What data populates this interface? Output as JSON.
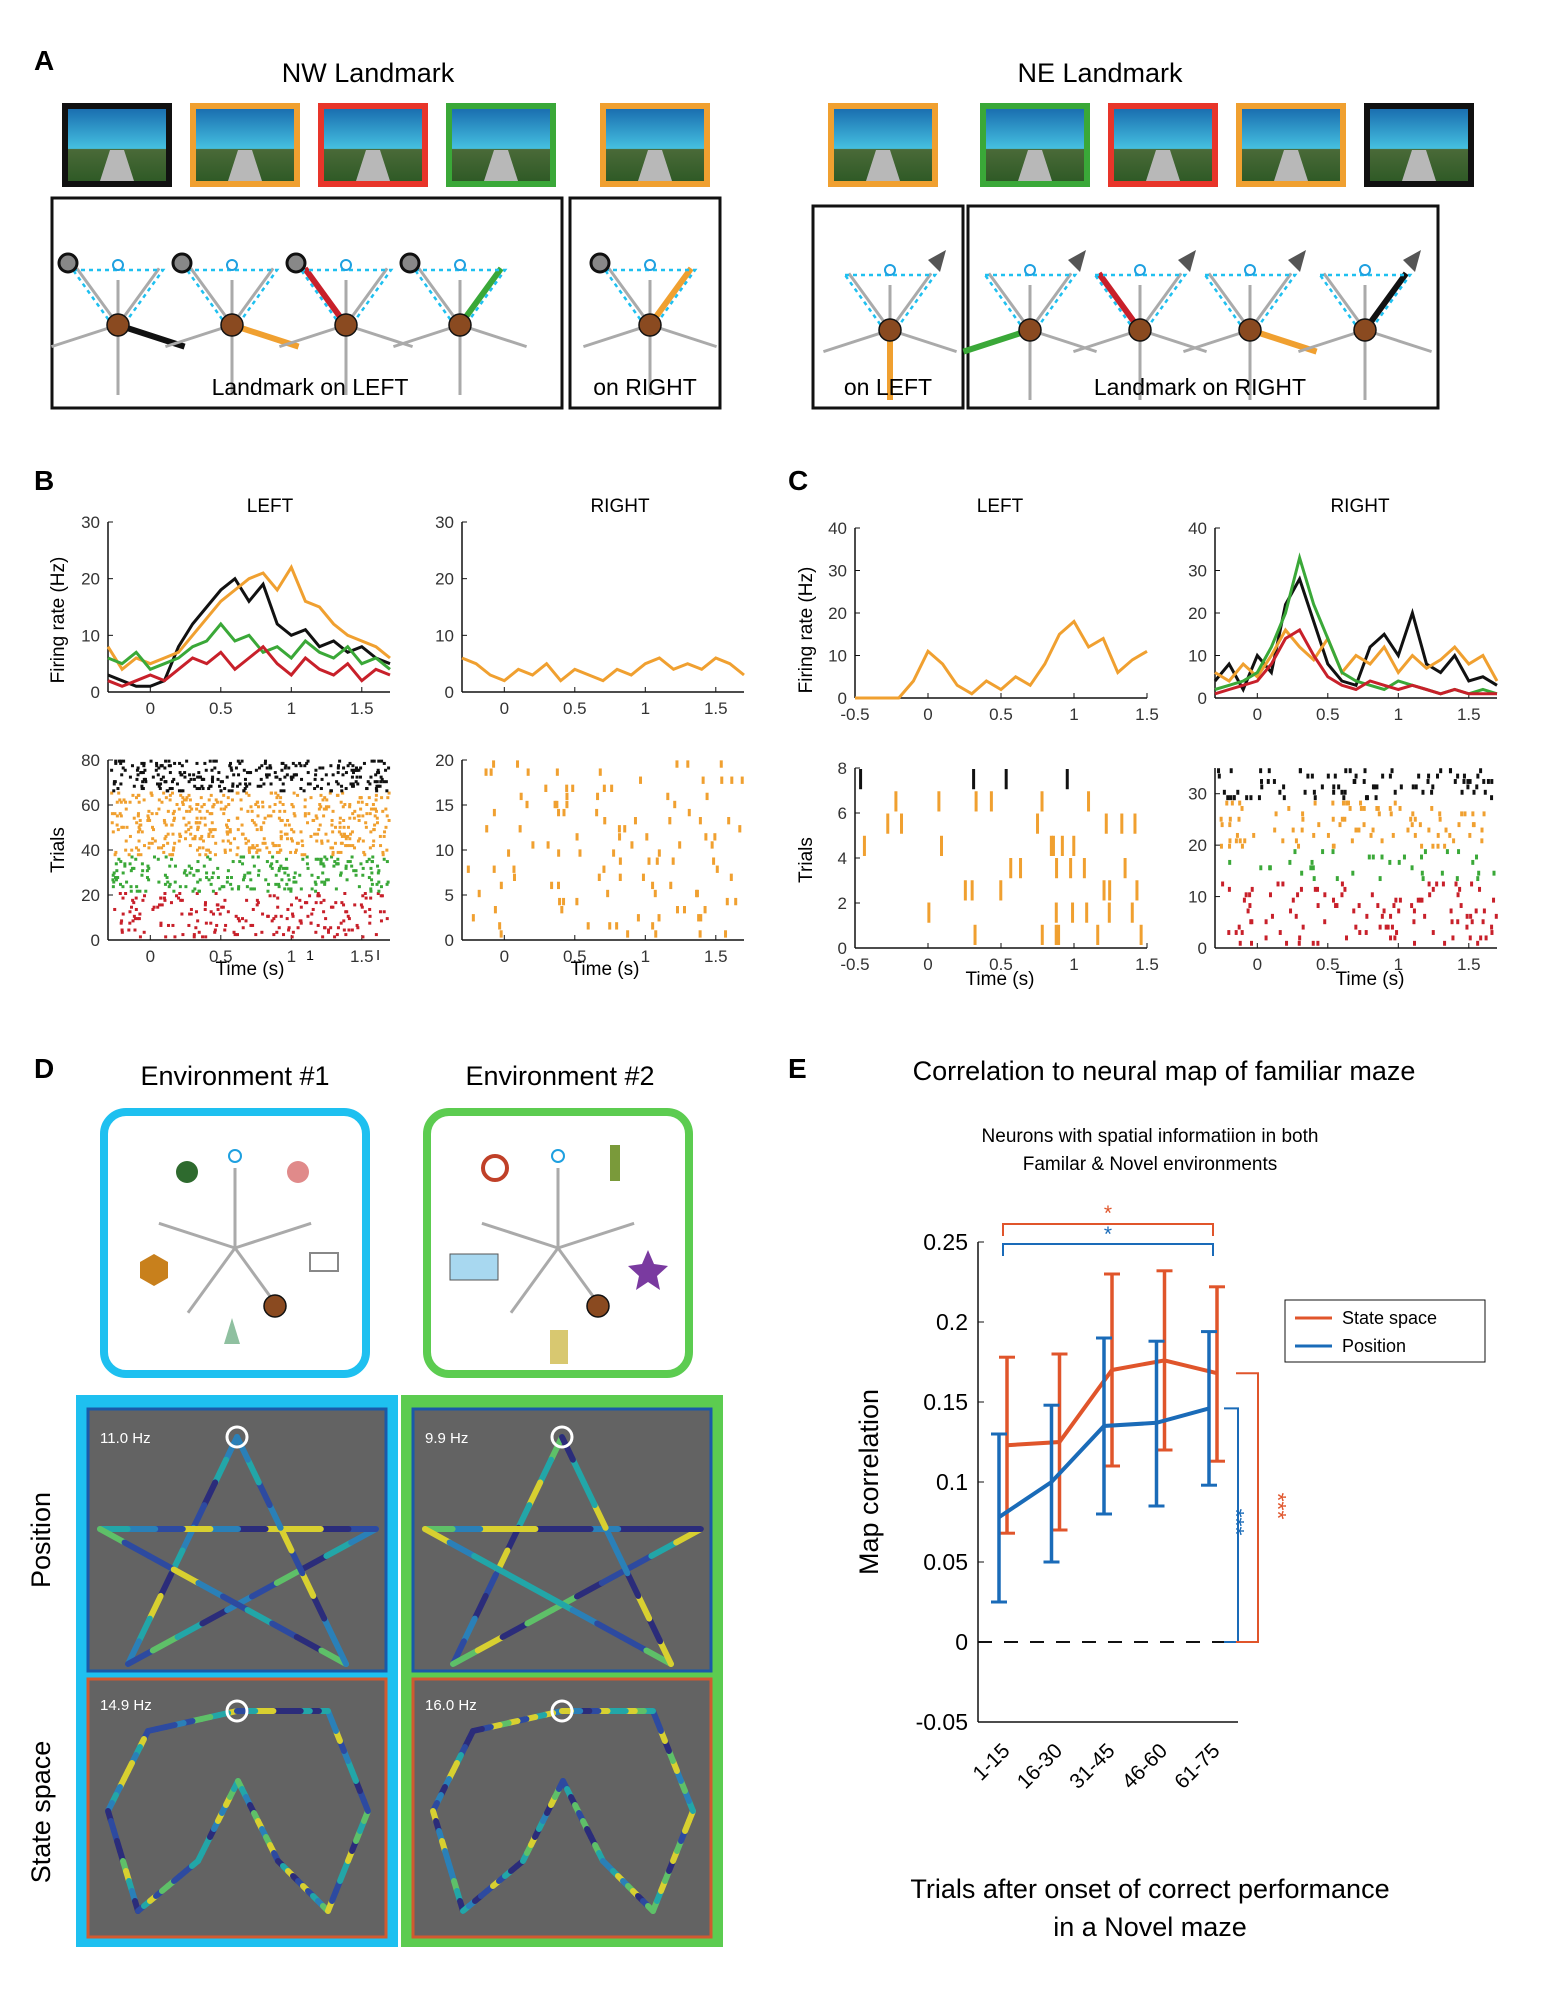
{
  "panel_letters": {
    "a": "A",
    "b": "B",
    "c": "C",
    "d": "D",
    "e": "E"
  },
  "panel_a": {
    "nw_title": "NW Landmark",
    "ne_title": "NE Landmark",
    "nw_frame_colors": [
      "#111111",
      "#f0a030",
      "#e8352a",
      "#3aa838",
      "#f0a030"
    ],
    "ne_frame_colors": [
      "#f0a030",
      "#3aa838",
      "#e8352a",
      "#f0a030",
      "#111111"
    ],
    "nw_left_caption": "Landmark on LEFT",
    "nw_right_caption": "on RIGHT",
    "ne_left_caption": "on LEFT",
    "ne_right_caption": "Landmark on RIGHT"
  },
  "panel_b": {
    "left_title": "LEFT",
    "right_title": "RIGHT",
    "ylabel_rate": "Firing rate (Hz)",
    "ylabel_trials": "Trials",
    "xlabel": "Time (s)",
    "rate_yticks": [
      "0",
      "10",
      "20",
      "30"
    ],
    "raster_left_yticks": [
      "0",
      "20",
      "40",
      "60",
      "80"
    ],
    "raster_right_yticks": [
      "0",
      "5",
      "10",
      "15",
      "20"
    ],
    "xticks": [
      "0",
      "0.5",
      "1",
      "1.5"
    ],
    "stray_ticks": [
      "1",
      "l"
    ]
  },
  "panel_c": {
    "left_title": "LEFT",
    "right_title": "RIGHT",
    "ylabel_rate": "Firing rate (Hz)",
    "ylabel_trials": "Trials",
    "xlabel": "Time (s)",
    "rate_yticks": [
      "0",
      "10",
      "20",
      "30",
      "40"
    ],
    "raster_left_yticks": [
      "0",
      "2",
      "4",
      "6",
      "8"
    ],
    "raster_right_yticks": [
      "0",
      "10",
      "20",
      "30"
    ],
    "left_xticks": [
      "-0.5",
      "0",
      "0.5",
      "1",
      "1.5"
    ],
    "right_xticks": [
      "0",
      "0.5",
      "1",
      "1.5"
    ]
  },
  "panel_d": {
    "env1_title": "Environment #1",
    "env2_title": "Environment #2",
    "row_position": "Position",
    "row_state": "State space",
    "rates": {
      "env1_position": "11.0 Hz",
      "env2_position": "9.9 Hz",
      "env1_state": "14.9 Hz",
      "env2_state": "16.0 Hz"
    },
    "env1_color": "#1ec0f0",
    "env2_color": "#5ccc50"
  },
  "panel_e": {
    "title": "Correlation to neural map of familiar maze",
    "subtitle_line1": "Neurons with spatial informatiion in both",
    "subtitle_line2": "Familar & Novel environments",
    "xlabel_line1": "Trials after onset of correct performance",
    "xlabel_line2": "in a Novel maze",
    "sig_top": "*",
    "sig_mid": "*",
    "sig_blue_vertical": "***",
    "sig_red_vertical": "***"
  },
  "chart_data": [
    {
      "type": "line",
      "ylabel": "Map correlation",
      "categories": [
        "1-15",
        "16-30",
        "31-45",
        "46-60",
        "61-75"
      ],
      "ylim": [
        -0.05,
        0.25
      ],
      "yticks": [
        "-0.05",
        "0",
        "0.05",
        "0.1",
        "0.15",
        "0.2",
        "0.25"
      ],
      "legend_position": "top-right",
      "series": [
        {
          "name": "State space",
          "color": "#e0552b",
          "values": [
            0.123,
            0.125,
            0.17,
            0.176,
            0.168
          ],
          "err_low": [
            0.068,
            0.07,
            0.11,
            0.12,
            0.113
          ],
          "err_high": [
            0.178,
            0.18,
            0.23,
            0.232,
            0.222
          ]
        },
        {
          "name": "Position",
          "color": "#1a6bb8",
          "values": [
            0.078,
            0.1,
            0.135,
            0.137,
            0.146
          ],
          "err_low": [
            0.025,
            0.05,
            0.08,
            0.085,
            0.098
          ],
          "err_high": [
            0.13,
            0.148,
            0.19,
            0.188,
            0.194
          ]
        }
      ]
    },
    {
      "type": "line",
      "title": "LEFT",
      "ylabel": "Firing rate (Hz)",
      "xlabel": "Time (s)",
      "xlim": [
        -0.3,
        1.7
      ],
      "ylim": [
        0,
        30
      ],
      "series": [
        {
          "color": "#111111",
          "x": [
            -0.3,
            -0.2,
            -0.1,
            0,
            0.1,
            0.2,
            0.3,
            0.4,
            0.5,
            0.6,
            0.7,
            0.8,
            0.9,
            1.0,
            1.1,
            1.2,
            1.3,
            1.4,
            1.5,
            1.6,
            1.7
          ],
          "values": [
            3,
            2,
            1,
            1,
            2,
            8,
            12,
            15,
            18,
            20,
            16,
            19,
            12,
            10,
            11,
            8,
            9,
            7,
            8,
            6,
            5
          ]
        },
        {
          "color": "#f0a030",
          "x": [
            -0.3,
            -0.2,
            -0.1,
            0,
            0.1,
            0.2,
            0.3,
            0.4,
            0.5,
            0.6,
            0.7,
            0.8,
            0.9,
            1.0,
            1.1,
            1.2,
            1.3,
            1.4,
            1.5,
            1.6,
            1.7
          ],
          "values": [
            8,
            4,
            6,
            5,
            6,
            7,
            10,
            13,
            16,
            18,
            20,
            21,
            18,
            22,
            16,
            15,
            12,
            10,
            9,
            8,
            6
          ]
        },
        {
          "color": "#3aa838",
          "x": [
            -0.3,
            -0.2,
            -0.1,
            0,
            0.1,
            0.2,
            0.3,
            0.4,
            0.5,
            0.6,
            0.7,
            0.8,
            0.9,
            1.0,
            1.1,
            1.2,
            1.3,
            1.4,
            1.5,
            1.6,
            1.7
          ],
          "values": [
            6,
            5,
            7,
            4,
            5,
            6,
            8,
            9,
            12,
            9,
            10,
            7,
            8,
            6,
            9,
            7,
            6,
            8,
            5,
            6,
            4
          ]
        },
        {
          "color": "#c8202a",
          "x": [
            -0.3,
            -0.2,
            -0.1,
            0,
            0.1,
            0.2,
            0.3,
            0.4,
            0.5,
            0.6,
            0.7,
            0.8,
            0.9,
            1.0,
            1.1,
            1.2,
            1.3,
            1.4,
            1.5,
            1.6,
            1.7
          ],
          "values": [
            2,
            1,
            2,
            3,
            2,
            4,
            6,
            5,
            7,
            4,
            6,
            8,
            5,
            3,
            6,
            4,
            3,
            5,
            2,
            4,
            3
          ]
        }
      ]
    },
    {
      "type": "line",
      "title": "RIGHT",
      "xlabel": "Time (s)",
      "xlim": [
        -0.3,
        1.7
      ],
      "ylim": [
        0,
        30
      ],
      "series": [
        {
          "color": "#f0a030",
          "x": [
            -0.3,
            -0.2,
            -0.1,
            0,
            0.1,
            0.2,
            0.3,
            0.4,
            0.5,
            0.6,
            0.7,
            0.8,
            0.9,
            1.0,
            1.1,
            1.2,
            1.3,
            1.4,
            1.5,
            1.6,
            1.7
          ],
          "values": [
            6,
            5,
            3,
            2,
            4,
            3,
            5,
            2,
            4,
            3,
            2,
            4,
            3,
            5,
            6,
            4,
            5,
            4,
            6,
            5,
            3
          ]
        }
      ]
    },
    {
      "type": "line",
      "title": "LEFT",
      "ylabel": "Firing rate (Hz)",
      "xlabel": "Time (s)",
      "xlim": [
        -0.5,
        1.5
      ],
      "ylim": [
        0,
        40
      ],
      "series": [
        {
          "color": "#f0a030",
          "x": [
            -0.5,
            -0.4,
            -0.3,
            -0.2,
            -0.1,
            0,
            0.1,
            0.2,
            0.3,
            0.4,
            0.5,
            0.6,
            0.7,
            0.8,
            0.9,
            1.0,
            1.1,
            1.2,
            1.3,
            1.4,
            1.5
          ],
          "values": [
            0,
            0,
            0,
            0,
            4,
            11,
            8,
            3,
            1,
            4,
            2,
            5,
            3,
            8,
            15,
            18,
            12,
            14,
            6,
            9,
            11
          ]
        }
      ]
    },
    {
      "type": "line",
      "title": "RIGHT",
      "xlabel": "Time (s)",
      "xlim": [
        -0.3,
        1.7
      ],
      "ylim": [
        0,
        40
      ],
      "series": [
        {
          "color": "#111111",
          "x": [
            -0.3,
            -0.2,
            -0.1,
            0,
            0.1,
            0.2,
            0.3,
            0.4,
            0.5,
            0.6,
            0.7,
            0.8,
            0.9,
            1.0,
            1.1,
            1.2,
            1.3,
            1.4,
            1.5,
            1.6,
            1.7
          ],
          "values": [
            4,
            8,
            2,
            10,
            6,
            22,
            28,
            18,
            8,
            4,
            3,
            12,
            15,
            10,
            20,
            8,
            6,
            10,
            4,
            5,
            3
          ]
        },
        {
          "color": "#f0a030",
          "x": [
            -0.3,
            -0.2,
            -0.1,
            0,
            0.1,
            0.2,
            0.3,
            0.4,
            0.5,
            0.6,
            0.7,
            0.8,
            0.9,
            1.0,
            1.1,
            1.2,
            1.3,
            1.4,
            1.5,
            1.6,
            1.7
          ],
          "values": [
            6,
            4,
            8,
            5,
            10,
            16,
            12,
            9,
            14,
            6,
            10,
            8,
            12,
            6,
            10,
            7,
            9,
            12,
            8,
            10,
            4
          ]
        },
        {
          "color": "#3aa838",
          "x": [
            -0.3,
            -0.2,
            -0.1,
            0,
            0.1,
            0.2,
            0.3,
            0.4,
            0.5,
            0.6,
            0.7,
            0.8,
            0.9,
            1.0,
            1.1,
            1.2,
            1.3,
            1.4,
            1.5,
            1.6,
            1.7
          ],
          "values": [
            2,
            3,
            4,
            6,
            12,
            20,
            33,
            22,
            14,
            6,
            4,
            3,
            2,
            4,
            3,
            2,
            1,
            2,
            1,
            2,
            1
          ]
        },
        {
          "color": "#c8202a",
          "x": [
            -0.3,
            -0.2,
            -0.1,
            0,
            0.1,
            0.2,
            0.3,
            0.4,
            0.5,
            0.6,
            0.7,
            0.8,
            0.9,
            1.0,
            1.1,
            1.2,
            1.3,
            1.4,
            1.5,
            1.6,
            1.7
          ],
          "values": [
            1,
            2,
            3,
            4,
            8,
            14,
            16,
            10,
            5,
            3,
            2,
            4,
            3,
            2,
            3,
            2,
            1,
            2,
            1,
            1,
            1
          ]
        }
      ]
    }
  ]
}
